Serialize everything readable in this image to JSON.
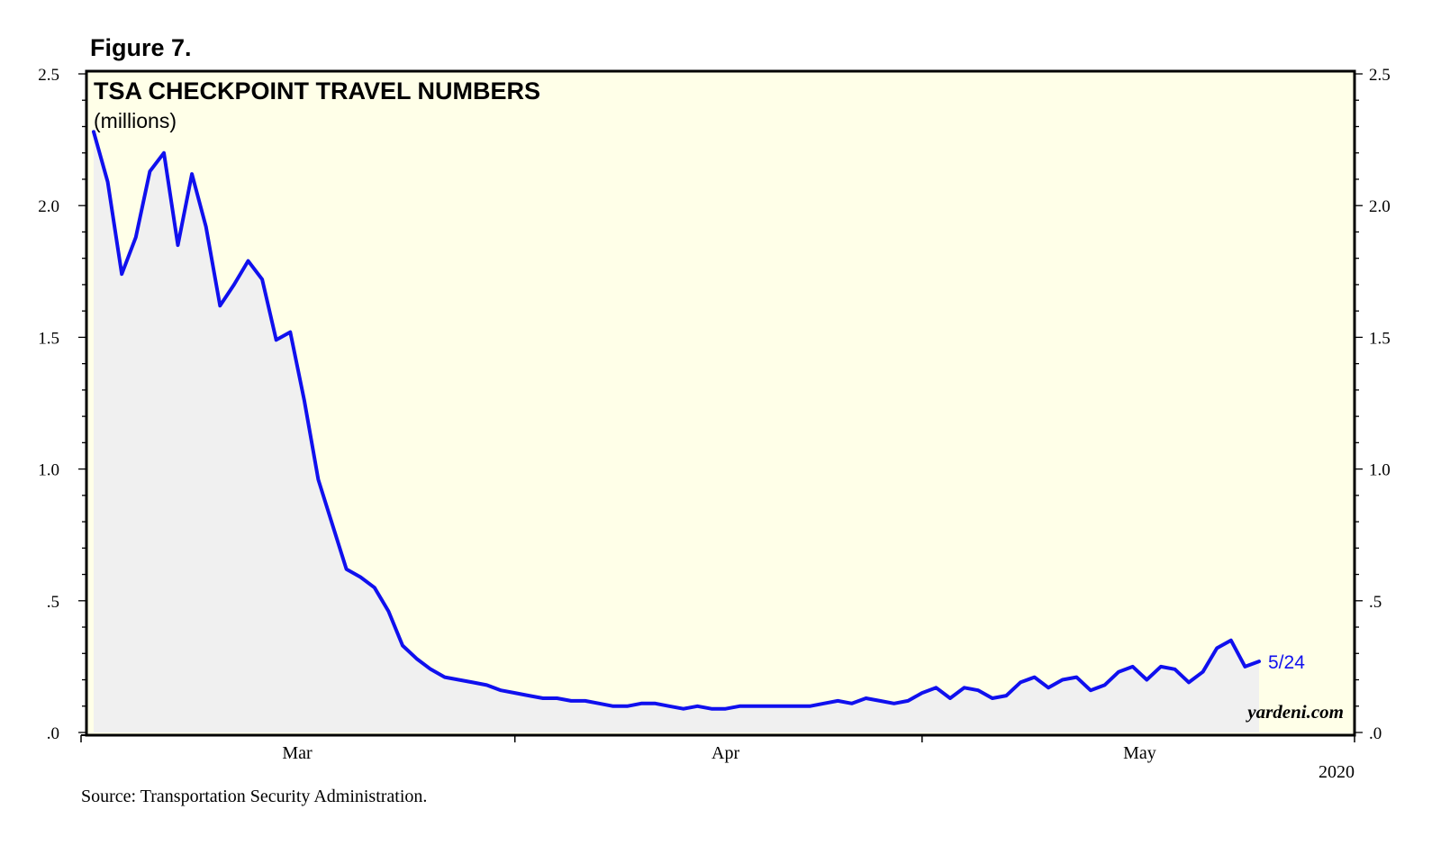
{
  "figure_label": "Figure 7.",
  "source": "Source: Transportation Security Administration.",
  "watermark": "yardeni.com",
  "colors": {
    "plot_background": "#ffffe8",
    "area_fill": "#f0f0f0",
    "line": "#1010ee",
    "axis": "#000000"
  },
  "chart_data": {
    "type": "line",
    "title": "TSA CHECKPOINT TRAVEL NUMBERS",
    "subtitle": "(millions)",
    "xlabel": "2020",
    "ylabel": "",
    "ylim": [
      0,
      2.5
    ],
    "y_ticks": [
      0,
      0.5,
      1.0,
      1.5,
      2.0,
      2.5
    ],
    "y_tick_labels": [
      ".0",
      ".5",
      "1.0",
      "1.5",
      "2.0",
      "2.5"
    ],
    "x_domain_days": [
      0,
      90
    ],
    "x_ticks": [
      {
        "label": "Mar",
        "day": 14.5
      },
      {
        "label": "Apr",
        "day": 45
      },
      {
        "label": "May",
        "day": 74.5
      }
    ],
    "x_month_boundaries": [
      30,
      59
    ],
    "last_point_label": "5/24",
    "series": [
      {
        "name": "TSA checkpoint travel numbers",
        "start_date": "2020-02-16",
        "end_date": "2020-05-24",
        "values": [
          2.28,
          2.09,
          1.74,
          1.88,
          2.13,
          2.2,
          1.85,
          2.12,
          1.92,
          1.62,
          1.7,
          1.79,
          1.72,
          1.49,
          1.52,
          1.26,
          0.96,
          0.79,
          0.62,
          0.59,
          0.55,
          0.46,
          0.33,
          0.28,
          0.24,
          0.21,
          0.2,
          0.19,
          0.18,
          0.16,
          0.15,
          0.14,
          0.13,
          0.13,
          0.12,
          0.12,
          0.11,
          0.1,
          0.1,
          0.11,
          0.11,
          0.1,
          0.09,
          0.1,
          0.09,
          0.09,
          0.1,
          0.1,
          0.1,
          0.1,
          0.1,
          0.1,
          0.11,
          0.12,
          0.11,
          0.13,
          0.12,
          0.11,
          0.12,
          0.15,
          0.17,
          0.13,
          0.17,
          0.16,
          0.13,
          0.14,
          0.19,
          0.21,
          0.17,
          0.2,
          0.21,
          0.16,
          0.18,
          0.23,
          0.25,
          0.2,
          0.25,
          0.24,
          0.19,
          0.23,
          0.32,
          0.35,
          0.25,
          0.27
        ]
      }
    ]
  }
}
